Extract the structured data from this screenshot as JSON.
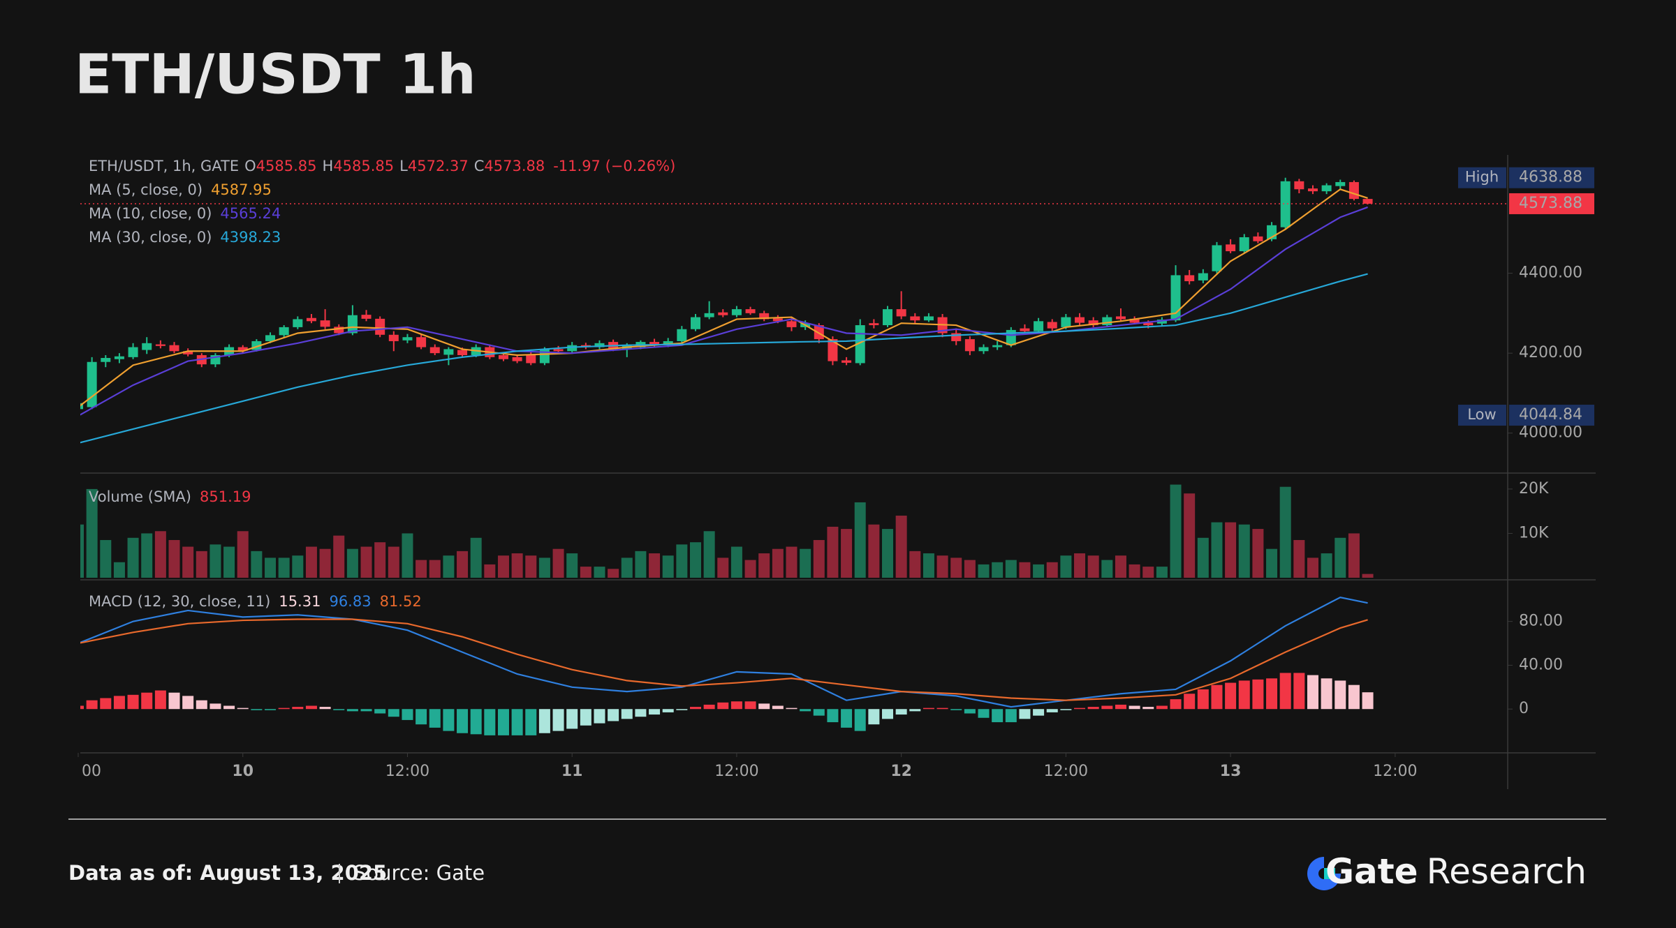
{
  "header": {
    "title": "ETH/USDT 1h"
  },
  "chart_data": {
    "type": "candlestick",
    "legend": {
      "symbol": "ETH/USDT, 1h, GATE",
      "open_label": "O",
      "high_label": "H",
      "low_label": "L",
      "close_label": "C",
      "change": "-11.97 (−0.26%)"
    },
    "xlim": [
      0,
      104
    ],
    "xticks": [
      {
        "value": 0,
        "label": "00"
      },
      {
        "value": 12,
        "label": "10",
        "emphasis": true
      },
      {
        "value": 24,
        "label": "12:00"
      },
      {
        "value": 36,
        "label": "11",
        "emphasis": true
      },
      {
        "value": 48,
        "label": "12:00"
      },
      {
        "value": 60,
        "label": "12",
        "emphasis": true
      },
      {
        "value": 72,
        "label": "12:00"
      },
      {
        "value": 84,
        "label": "13",
        "emphasis": true
      },
      {
        "value": 96,
        "label": "12:00"
      }
    ],
    "ylim": [
      3900,
      4696
    ],
    "yticks": [
      {
        "value": 4000,
        "label": "4000.00"
      },
      {
        "value": 4200,
        "label": "4200.00"
      },
      {
        "value": 4400,
        "label": "4400.00"
      }
    ],
    "up_color": "#1fbf8c",
    "down_color": "#f23645",
    "ohlc": [
      [
        4060,
        4085,
        4044.84,
        4075
      ],
      [
        4065,
        4190,
        4060,
        4178
      ],
      [
        4178,
        4195,
        4165,
        4188
      ],
      [
        4185,
        4200,
        4175,
        4192
      ],
      [
        4190,
        4225,
        4185,
        4215
      ],
      [
        4208,
        4240,
        4198,
        4225
      ],
      [
        4222,
        4232,
        4212,
        4218
      ],
      [
        4220,
        4228,
        4200,
        4205
      ],
      [
        4205,
        4212,
        4192,
        4197
      ],
      [
        4195,
        4200,
        4165,
        4172
      ],
      [
        4172,
        4200,
        4165,
        4195
      ],
      [
        4195,
        4222,
        4190,
        4215
      ],
      [
        4215,
        4220,
        4200,
        4206
      ],
      [
        4208,
        4235,
        4204,
        4230
      ],
      [
        4230,
        4252,
        4225,
        4245
      ],
      [
        4245,
        4270,
        4240,
        4265
      ],
      [
        4265,
        4292,
        4260,
        4285
      ],
      [
        4288,
        4298,
        4275,
        4280
      ],
      [
        4282,
        4310,
        4260,
        4266
      ],
      [
        4266,
        4272,
        4245,
        4250
      ],
      [
        4250,
        4320,
        4245,
        4295
      ],
      [
        4296,
        4308,
        4280,
        4286
      ],
      [
        4286,
        4292,
        4240,
        4246
      ],
      [
        4246,
        4255,
        4205,
        4230
      ],
      [
        4232,
        4248,
        4225,
        4240
      ],
      [
        4240,
        4246,
        4210,
        4215
      ],
      [
        4215,
        4222,
        4195,
        4200
      ],
      [
        4196,
        4215,
        4170,
        4210
      ],
      [
        4208,
        4214,
        4190,
        4195
      ],
      [
        4195,
        4222,
        4190,
        4215
      ],
      [
        4215,
        4222,
        4185,
        4190
      ],
      [
        4195,
        4202,
        4180,
        4185
      ],
      [
        4190,
        4196,
        4175,
        4180
      ],
      [
        4195,
        4205,
        4170,
        4175
      ],
      [
        4175,
        4215,
        4170,
        4210
      ],
      [
        4210,
        4218,
        4200,
        4205
      ],
      [
        4205,
        4228,
        4200,
        4220
      ],
      [
        4220,
        4226,
        4210,
        4215
      ],
      [
        4215,
        4232,
        4210,
        4225
      ],
      [
        4228,
        4234,
        4205,
        4210
      ],
      [
        4210,
        4225,
        4190,
        4220
      ],
      [
        4215,
        4232,
        4210,
        4228
      ],
      [
        4228,
        4236,
        4216,
        4220
      ],
      [
        4220,
        4238,
        4215,
        4230
      ],
      [
        4230,
        4268,
        4225,
        4260
      ],
      [
        4260,
        4298,
        4255,
        4290
      ],
      [
        4290,
        4330,
        4285,
        4300
      ],
      [
        4302,
        4310,
        4290,
        4295
      ],
      [
        4295,
        4318,
        4290,
        4310
      ],
      [
        4310,
        4316,
        4296,
        4300
      ],
      [
        4300,
        4306,
        4280,
        4285
      ],
      [
        4287,
        4295,
        4275,
        4280
      ],
      [
        4280,
        4288,
        4255,
        4265
      ],
      [
        4265,
        4282,
        4258,
        4275
      ],
      [
        4270,
        4275,
        4225,
        4235
      ],
      [
        4235,
        4242,
        4170,
        4180
      ],
      [
        4182,
        4190,
        4170,
        4176
      ],
      [
        4175,
        4285,
        4170,
        4270
      ],
      [
        4275,
        4285,
        4262,
        4270
      ],
      [
        4270,
        4318,
        4265,
        4310
      ],
      [
        4310,
        4355,
        4285,
        4292
      ],
      [
        4292,
        4300,
        4275,
        4282
      ],
      [
        4282,
        4300,
        4278,
        4292
      ],
      [
        4290,
        4298,
        4240,
        4250
      ],
      [
        4250,
        4262,
        4220,
        4230
      ],
      [
        4235,
        4242,
        4195,
        4205
      ],
      [
        4205,
        4222,
        4198,
        4215
      ],
      [
        4215,
        4230,
        4208,
        4220
      ],
      [
        4220,
        4265,
        4215,
        4258
      ],
      [
        4262,
        4272,
        4250,
        4255
      ],
      [
        4255,
        4288,
        4250,
        4280
      ],
      [
        4278,
        4285,
        4255,
        4262
      ],
      [
        4265,
        4298,
        4260,
        4290
      ],
      [
        4290,
        4300,
        4270,
        4276
      ],
      [
        4282,
        4290,
        4265,
        4270
      ],
      [
        4270,
        4296,
        4265,
        4290
      ],
      [
        4292,
        4312,
        4280,
        4285
      ],
      [
        4286,
        4292,
        4272,
        4276
      ],
      [
        4276,
        4282,
        4262,
        4270
      ],
      [
        4274,
        4290,
        4268,
        4284
      ],
      [
        4282,
        4420,
        4278,
        4395
      ],
      [
        4395,
        4408,
        4372,
        4380
      ],
      [
        4382,
        4410,
        4375,
        4400
      ],
      [
        4405,
        4478,
        4400,
        4470
      ],
      [
        4472,
        4485,
        4450,
        4455
      ],
      [
        4455,
        4498,
        4450,
        4490
      ],
      [
        4492,
        4502,
        4475,
        4480
      ],
      [
        4485,
        4528,
        4480,
        4520
      ],
      [
        4515,
        4638.88,
        4510,
        4630
      ],
      [
        4630,
        4636,
        4600,
        4610
      ],
      [
        4612,
        4620,
        4598,
        4605
      ],
      [
        4605,
        4625,
        4598,
        4620
      ],
      [
        4618,
        4634,
        4610,
        4628
      ],
      [
        4628,
        4632,
        4582,
        4585.85
      ],
      [
        4585.85,
        4585.85,
        4572.37,
        4573.88
      ]
    ],
    "ma_x": [
      0,
      4,
      8,
      12,
      16,
      20,
      24,
      28,
      32,
      36,
      40,
      44,
      48,
      52,
      56,
      60,
      64,
      68,
      72,
      76,
      80,
      84,
      88,
      92,
      94
    ],
    "ma": [
      {
        "name": "MA (5, close, 0)",
        "color": "#f0a030",
        "values": [
          4065,
          4170,
          4205,
          4205,
          4250,
          4265,
          4260,
          4210,
          4195,
          4200,
          4215,
          4225,
          4285,
          4290,
          4210,
          4275,
          4270,
          4220,
          4265,
          4280,
          4300,
          4430,
          4510,
          4610,
          4587.95
        ]
      },
      {
        "name": "MA (10, close, 0)",
        "color": "#5a3fd8",
        "values": [
          4043,
          4120,
          4180,
          4200,
          4225,
          4255,
          4265,
          4235,
          4205,
          4200,
          4210,
          4220,
          4260,
          4285,
          4250,
          4245,
          4260,
          4245,
          4255,
          4270,
          4285,
          4360,
          4460,
          4540,
          4565.24
        ]
      },
      {
        "name": "MA (30, close, 0)",
        "color": "#27a8d8",
        "values": [
          3975,
          4010,
          4045,
          4080,
          4115,
          4145,
          4170,
          4190,
          4205,
          4215,
          4220,
          4222,
          4225,
          4228,
          4230,
          4238,
          4245,
          4250,
          4255,
          4262,
          4270,
          4300,
          4340,
          4380,
          4398.23
        ]
      }
    ],
    "high_tag": {
      "label": "High"
    },
    "low_tag": {
      "label": "Low"
    },
    "volume": {
      "name": "Volume (SMA)",
      "ylim": [
        0,
        23600
      ],
      "yticks": [
        {
          "value": 10000,
          "label": "10K"
        },
        {
          "value": 20000,
          "label": "20K"
        }
      ],
      "up_color": "#1b6e52",
      "down_color": "#8f2637",
      "values": [
        12000,
        20000,
        8500,
        3500,
        9000,
        10000,
        10500,
        8500,
        7000,
        6000,
        7500,
        7000,
        10500,
        6000,
        4500,
        4500,
        5000,
        7000,
        6500,
        9500,
        6500,
        7000,
        8000,
        7000,
        10000,
        4000,
        4000,
        5000,
        6000,
        9000,
        3000,
        5000,
        5500,
        5000,
        4500,
        6500,
        5500,
        2500,
        2500,
        2000,
        4500,
        6000,
        5500,
        5000,
        7500,
        8000,
        10500,
        4500,
        7000,
        4000,
        5500,
        6500,
        7000,
        6500,
        8500,
        11500,
        11000,
        17000,
        12000,
        11000,
        14000,
        6000,
        5500,
        5000,
        4500,
        4000,
        3000,
        3500,
        4000,
        3500,
        3000,
        3500,
        5000,
        5500,
        5000,
        4000,
        5000,
        3000,
        2500,
        2500,
        21000,
        19000,
        9000,
        12500,
        12500,
        12000,
        11000,
        6500,
        20500,
        8500,
        4500,
        5500,
        9000,
        10000,
        851.19
      ]
    },
    "macd": {
      "name": "MACD (12, 30, close, 11)",
      "ylim": [
        -40,
        118
      ],
      "yticks": [
        0,
        {
          "value": 40,
          "label": "40.00"
        },
        {
          "value": 80,
          "label": "80.00"
        }
      ],
      "colors": {
        "up_grow": "#f23645",
        "up_fall": "#f8c6cf",
        "down_grow": "#22ab94",
        "down_fall": "#ace5dc"
      },
      "histogram": [
        3,
        8,
        10,
        12,
        13,
        15,
        17,
        15,
        12,
        8,
        5,
        3,
        1,
        -1,
        -1,
        1,
        2,
        3,
        2,
        -1,
        -2,
        -2,
        -4,
        -7,
        -10,
        -14,
        -17,
        -20,
        -22,
        -23,
        -24,
        -24,
        -24,
        -24,
        -22,
        -20,
        -18,
        -15,
        -13,
        -11,
        -9,
        -7,
        -5,
        -3,
        -1,
        2,
        4,
        6,
        7,
        7,
        5,
        3,
        1,
        -2,
        -6,
        -12,
        -17,
        -20,
        -14,
        -9,
        -5,
        -2,
        1,
        1,
        -1,
        -4,
        -8,
        -12,
        -12,
        -9,
        -6,
        -3,
        -1,
        1,
        2,
        3,
        4,
        3,
        2,
        3,
        9,
        14,
        18,
        22,
        24,
        26,
        27,
        28,
        33,
        33,
        31,
        28,
        26,
        22,
        15.31
      ],
      "lines": [
        {
          "color": "#2f80e0",
          "values": [
            60,
            80,
            90,
            84,
            86,
            82,
            72,
            52,
            32,
            20,
            16,
            20,
            34,
            32,
            8,
            16,
            12,
            2,
            8,
            14,
            18,
            44,
            76,
            102,
            96.83
          ]
        },
        {
          "color": "#e8692c",
          "values": [
            60,
            70,
            78,
            81,
            82,
            82,
            78,
            66,
            50,
            36,
            26,
            21,
            24,
            28,
            22,
            16,
            14,
            10,
            8,
            10,
            13,
            28,
            52,
            74,
            81.52
          ]
        }
      ]
    }
  },
  "footer": {
    "date": "Data as of: August 13, 2025",
    "source": "Source: Gate",
    "brand": "Gate",
    "brand_suffix": "Research"
  }
}
